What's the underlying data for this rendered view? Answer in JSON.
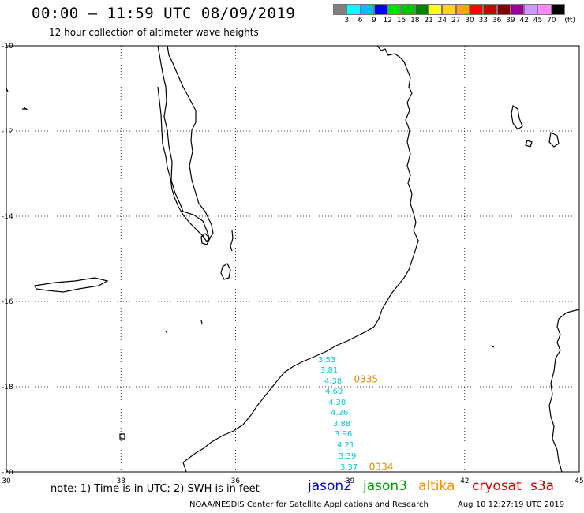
{
  "header": {
    "title": "00:00 – 11:59 UTC 08/09/2019",
    "subtitle": "12 hour collection of altimeter wave heights"
  },
  "colorbar": {
    "labels": [
      "3",
      "6",
      "9",
      "12",
      "15",
      "18",
      "21",
      "24",
      "27",
      "30",
      "33",
      "36",
      "39",
      "42",
      "45",
      "70"
    ],
    "unit": "(ft)",
    "colors": [
      "#808080",
      "#00ffff",
      "#00bfff",
      "#0000ff",
      "#00e000",
      "#00c000",
      "#008000",
      "#ffff00",
      "#ffd700",
      "#ffa500",
      "#ff0000",
      "#cc0000",
      "#800000",
      "#990099",
      "#cc99ff",
      "#ff88ff",
      "#000000"
    ]
  },
  "map": {
    "lat_labels": [
      "-10",
      "-12",
      "-14",
      "-16",
      "-18",
      "-20"
    ],
    "lon_labels": [
      "30",
      "33",
      "36",
      "39",
      "42",
      "45"
    ],
    "lon_range": [
      30,
      45
    ],
    "lat_range": [
      -10,
      -20
    ],
    "grid": "dotted",
    "coastline_color": "#000000"
  },
  "observations": {
    "swh_color": "#00c8d8",
    "time_color": "#e08a00",
    "swh_values": [
      "3.53",
      "3.81",
      "4.38",
      "4.60",
      "4.30",
      "4.26",
      "3.88",
      "3.96",
      "4.21",
      "3.39",
      "3.37"
    ],
    "time_labels": [
      {
        "text": "0335",
        "lon": 39.1,
        "lat": -17.9
      },
      {
        "text": "0334",
        "lon": 39.5,
        "lat": -19.95
      }
    ]
  },
  "footer": {
    "note": "note: 1) Time is in UTC; 2) SWH is in feet",
    "satellites": [
      {
        "name": "jason2",
        "color": "#0000e0"
      },
      {
        "name": "jason3",
        "color": "#00a000"
      },
      {
        "name": "altika",
        "color": "#ff9000"
      },
      {
        "name": "cryosat",
        "color": "#e00000"
      },
      {
        "name": "s3a",
        "color": "#c00000"
      }
    ],
    "credit": "NOAA/NESDIS Center for Satellite Applications and Research",
    "timestamp": "Aug 10 12:27:19 UTC 2019"
  }
}
